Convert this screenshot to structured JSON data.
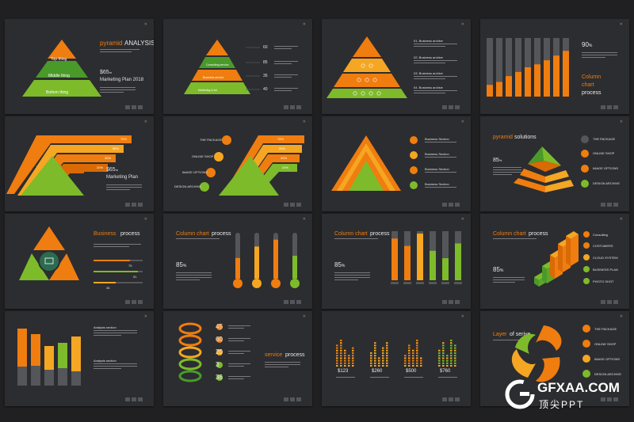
{
  "colors": {
    "orange": "#f07d0f",
    "green": "#7dbb2b",
    "darkgreen": "#4a9a2a",
    "yellow": "#f5a623",
    "gray": "#55565a",
    "bg": "#2c2d30"
  },
  "s1": {
    "title_a": "pyramid",
    "title_b": "ANALYSIS",
    "levels": [
      "Top thing",
      "Middle thing",
      "Bottom thing"
    ],
    "price": "$65",
    "price_unit": "m",
    "plan": "Marketing Plan 2018"
  },
  "s2": {
    "labels": [
      "Top",
      "Consulting service",
      "Business service",
      "Marketing & Ad"
    ],
    "values": [
      "60",
      "85",
      "35",
      "40"
    ]
  },
  "s3": {
    "items": [
      "01. Business archive",
      "02. Business archive",
      "03. Business archive",
      "04. Business archive"
    ]
  },
  "s4": {
    "pct": "90",
    "pct_unit": "%",
    "title_a": "Column",
    "title_b": "chart",
    "title_c": "process"
  },
  "s5": {
    "values": [
      "75%",
      "55%",
      "30%",
      "20%"
    ],
    "price": "$65",
    "price_unit": "m",
    "plan": "Marketing Plan"
  },
  "s6": {
    "items": [
      "THE PACKAGE",
      "ONLINE SHOP",
      "IMAGE OPTIONS",
      "DESIGN ARCHIVE"
    ],
    "values": [
      "75%",
      "55%",
      "30%",
      "20%"
    ]
  },
  "s7": {
    "items": [
      "Business Section",
      "Business Section",
      "Business Section",
      "Business Section"
    ]
  },
  "s8": {
    "title_a": "pyramid",
    "title_b": "solutions",
    "pct": "85",
    "pct_unit": "%",
    "items": [
      "THE PACKAGE",
      "ONLINE SHOP",
      "IMAGE OPTIONS",
      "DESIGN ARCHIVE"
    ]
  },
  "s9": {
    "title_a": "Business",
    "title_b": "process",
    "values": [
      "75",
      "91",
      "45"
    ]
  },
  "s10": {
    "title_a": "Column chart",
    "title_b": "process",
    "pct": "85",
    "pct_unit": "%",
    "levels": [
      0.45,
      0.7,
      0.85,
      0.5
    ]
  },
  "s11": {
    "title_a": "Column chart",
    "title_b": "process",
    "pct": "85",
    "pct_unit": "%",
    "levels": [
      0.85,
      0.7,
      0.95,
      0.6,
      0.45,
      0.75
    ]
  },
  "s12": {
    "title_a": "Column chart",
    "title_b": "process",
    "pct": "85",
    "pct_unit": "%",
    "items": [
      "Consulting",
      "COSTUMERS",
      "CLOUD SYSTEM",
      "BUSINESS PLAN",
      "PHOTO SHOT"
    ]
  },
  "s13": {
    "values": [
      "23",
      "25",
      "23",
      "35",
      "55"
    ],
    "label1": "Analysis section",
    "label2": "Analysis section"
  },
  "s14": {
    "title_a": "service",
    "title_b": "process",
    "values": [
      "45",
      "60",
      "20",
      "3",
      "36"
    ]
  },
  "s15": {
    "values": [
      "$123",
      "$260",
      "$500",
      "$760"
    ]
  },
  "s16": {
    "title_a": "Layer",
    "title_b": "of serive",
    "items": [
      "THE PACKAGE",
      "ONLINE SHOP",
      "IMAGE OPTIONS",
      "DESIGN ARCHIVE"
    ]
  },
  "watermark": {
    "brand": "GFXAA.COM",
    "sub": "顶尖PPT"
  }
}
